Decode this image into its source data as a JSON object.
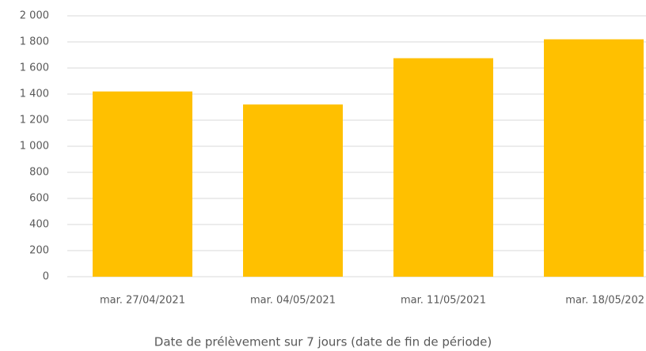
{
  "chart_data": {
    "type": "bar",
    "x_label": "Date de prélèvement sur 7 jours (date de fin de période)",
    "categories": [
      "mar. 27/04/2021",
      "mar. 04/05/2021",
      "mar. 11/05/2021",
      "mar. 18/05/202"
    ],
    "values": [
      1420,
      1320,
      1675,
      1820
    ],
    "color": "#ffc000",
    "ylim": [
      0,
      2000
    ],
    "yticks": [
      0,
      200,
      400,
      600,
      800,
      {
        "value": 1000,
        "label": "1 000"
      },
      {
        "value": 1200,
        "label": "1 200"
      },
      {
        "value": 1400,
        "label": "1 400"
      },
      {
        "value": 1600,
        "label": "1 600"
      },
      {
        "value": 1800,
        "label": "1 800"
      },
      {
        "value": 2000,
        "label": "2 000"
      }
    ],
    "grid": true
  }
}
